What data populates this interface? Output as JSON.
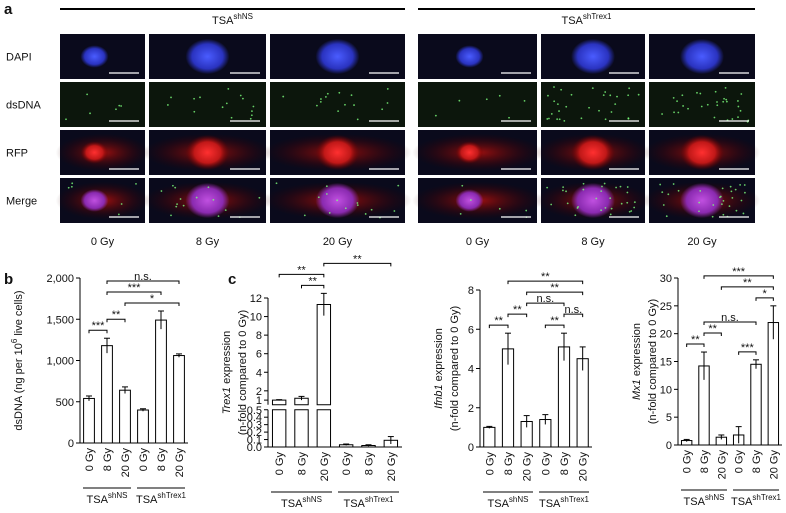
{
  "panel_labels": [
    "a",
    "b",
    "c"
  ],
  "panel_a": {
    "groups": [
      {
        "text": "TSA",
        "sup": "shNS"
      },
      {
        "text": "TSA",
        "sup": "shTrex1"
      }
    ],
    "rows": [
      "DAPI",
      "dsDNA",
      "RFP",
      "Merge"
    ],
    "columns": [
      "0 Gy",
      "8 Gy",
      "20 Gy",
      "0 Gy",
      "8 Gy",
      "20 Gy"
    ]
  },
  "chart_data": [
    {
      "type": "bar",
      "ylabel": [
        {
          "text": "dsDNA (ng per 10"
        },
        {
          "text": "6",
          "sup": true
        },
        {
          "text": " live cells)"
        }
      ],
      "categories": [
        "0 Gy",
        "8 Gy",
        "20 Gy",
        "0 Gy",
        "8 Gy",
        "20 Gy"
      ],
      "groups": [
        {
          "text": "TSA",
          "sup": "shNS"
        },
        {
          "text": "TSA",
          "sup": "shTrex1"
        }
      ],
      "values": [
        540,
        1180,
        640,
        400,
        1490,
        1060
      ],
      "errors": [
        30,
        90,
        40,
        15,
        110,
        20
      ],
      "ylim": [
        0,
        2000
      ],
      "yticks": [
        0,
        500,
        {
          "value": 1000,
          "label": "1,000"
        },
        {
          "value": 1500,
          "label": "1,500"
        },
        {
          "value": 2000,
          "label": "2,000"
        }
      ],
      "brackets": [
        {
          "from": 0,
          "to": 1,
          "label": "***"
        },
        {
          "from": 1,
          "to": 2,
          "label": "**"
        },
        {
          "from": 2,
          "to": 5,
          "label": "*"
        },
        {
          "from": 1,
          "to": 4,
          "label": "***"
        },
        {
          "from": 1,
          "to": 5,
          "label": "n.s."
        }
      ]
    },
    {
      "type": "bar",
      "ylabel": [
        {
          "text": "Trex1",
          "italic": true
        },
        {
          "text": " expression"
        }
      ],
      "ylabel2": "(n-fold compared to 0 Gy)",
      "categories": [
        "0 Gy",
        "8 Gy",
        "20 Gy",
        "0 Gy",
        "8 Gy",
        "20 Gy"
      ],
      "groups": [
        {
          "text": "TSA",
          "sup": "shNS"
        },
        {
          "text": "TSA",
          "sup": "shTrex1"
        }
      ],
      "values": [
        1.0,
        1.2,
        11.3,
        0.03,
        0.02,
        0.09
      ],
      "errors": [
        0.05,
        0.2,
        1.2,
        0.01,
        0.01,
        0.05
      ],
      "ylim": [
        0,
        12
      ],
      "ybreak": 0.5,
      "yticks": [
        {
          "value": 0,
          "label": "0.0"
        },
        0.1,
        0.2,
        0.3,
        0.4,
        0.5,
        1,
        2,
        4,
        6,
        8,
        10,
        12
      ],
      "brackets": [
        {
          "from": 1,
          "to": 2,
          "label": "**"
        },
        {
          "from": 0,
          "to": 2,
          "label": "**"
        },
        {
          "from": 2,
          "to": 5,
          "label": "**"
        }
      ]
    },
    {
      "type": "bar",
      "ylabel": [
        {
          "text": "Ifnb1",
          "italic": true
        },
        {
          "text": " expression"
        }
      ],
      "ylabel2": "(n-fold compared to 0 Gy)",
      "categories": [
        "0 Gy",
        "8 Gy",
        "20 Gy",
        "0 Gy",
        "8 Gy",
        "20 Gy"
      ],
      "groups": [
        {
          "text": "TSA",
          "sup": "shNS"
        },
        {
          "text": "TSA",
          "sup": "shTrex1"
        }
      ],
      "values": [
        1.0,
        5.0,
        1.3,
        1.4,
        5.1,
        4.5
      ],
      "errors": [
        0.05,
        0.8,
        0.3,
        0.25,
        0.7,
        0.6
      ],
      "ylim": [
        0,
        8
      ],
      "yticks": [
        0,
        2,
        4,
        6,
        8
      ],
      "brackets": [
        {
          "from": 0,
          "to": 1,
          "label": "**"
        },
        {
          "from": 1,
          "to": 2,
          "label": "**"
        },
        {
          "from": 3,
          "to": 4,
          "label": "**"
        },
        {
          "from": 4,
          "to": 5,
          "label": "n.s."
        },
        {
          "from": 2,
          "to": 4,
          "label": "n.s."
        },
        {
          "from": 2,
          "to": 5,
          "label": "**"
        },
        {
          "from": 1,
          "to": 5,
          "label": "**"
        }
      ]
    },
    {
      "type": "bar",
      "ylabel": [
        {
          "text": "Mx1",
          "italic": true
        },
        {
          "text": " expression"
        }
      ],
      "ylabel2": "(n-fold compared to 0 Gy)",
      "categories": [
        "0 Gy",
        "8 Gy",
        "20 Gy",
        "0 Gy",
        "8 Gy",
        "20 Gy"
      ],
      "groups": [
        {
          "text": "TSA",
          "sup": "shNS"
        },
        {
          "text": "TSA",
          "sup": "shTrex1"
        }
      ],
      "values": [
        0.8,
        14.2,
        1.4,
        1.8,
        14.5,
        22.0
      ],
      "errors": [
        0.2,
        2.5,
        0.4,
        1.5,
        0.8,
        3.0
      ],
      "ylim": [
        0,
        30
      ],
      "yticks": [
        0,
        5,
        10,
        15,
        20,
        25,
        30
      ],
      "brackets": [
        {
          "from": 0,
          "to": 1,
          "label": "**"
        },
        {
          "from": 1,
          "to": 2,
          "label": "**"
        },
        {
          "from": 3,
          "to": 4,
          "label": "***"
        },
        {
          "from": 4,
          "to": 5,
          "label": "*"
        },
        {
          "from": 1,
          "to": 4,
          "label": "n.s."
        },
        {
          "from": 2,
          "to": 5,
          "label": "**"
        },
        {
          "from": 1,
          "to": 5,
          "label": "***"
        }
      ]
    }
  ]
}
